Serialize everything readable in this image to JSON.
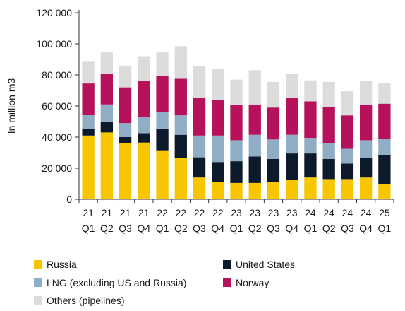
{
  "chart_data": {
    "type": "bar",
    "stacked": true,
    "ylabel": "In million m3",
    "ylim": [
      0,
      120000
    ],
    "yticks": [
      0,
      20000,
      40000,
      60000,
      80000,
      100000,
      120000
    ],
    "ytick_labels": [
      "0",
      "20 000",
      "40 000",
      "60 000",
      "80 000",
      "100 000",
      "120 000"
    ],
    "categories": [
      "21 Q1",
      "21 Q2",
      "21 Q3",
      "21 Q4",
      "22 Q1",
      "22 Q2",
      "22 Q3",
      "22 Q4",
      "23 Q1",
      "23 Q2",
      "23 Q3",
      "23 Q4",
      "24 Q1",
      "24 Q2",
      "24 Q3",
      "24 Q4",
      "25 Q1"
    ],
    "category_years": [
      "21",
      "21",
      "21",
      "21",
      "22",
      "22",
      "22",
      "22",
      "23",
      "23",
      "23",
      "23",
      "24",
      "24",
      "24",
      "24",
      "25"
    ],
    "category_quarters": [
      "Q1",
      "Q2",
      "Q3",
      "Q4",
      "Q1",
      "Q2",
      "Q3",
      "Q4",
      "Q1",
      "Q2",
      "Q3",
      "Q4",
      "Q1",
      "Q2",
      "Q3",
      "Q4",
      "Q1"
    ],
    "series": [
      {
        "name": "Russia",
        "color": "#f7c600",
        "values": [
          41000,
          43000,
          36000,
          36500,
          31500,
          26500,
          14000,
          11000,
          10500,
          10500,
          11000,
          12500,
          14000,
          13000,
          13000,
          14000,
          10000
        ]
      },
      {
        "name": "United States",
        "color": "#0c1a2b",
        "values": [
          4000,
          7000,
          4000,
          6000,
          14000,
          15000,
          13000,
          13000,
          14000,
          17000,
          15000,
          17000,
          15500,
          13000,
          10000,
          12500,
          18500
        ]
      },
      {
        "name": "LNG (excluding US and Russia)",
        "color": "#8faec6",
        "values": [
          9500,
          11000,
          9000,
          10500,
          10500,
          12500,
          14000,
          17000,
          13500,
          14000,
          12500,
          12000,
          10000,
          10000,
          9500,
          11500,
          10500
        ]
      },
      {
        "name": "Norway",
        "color": "#b5125b",
        "values": [
          20000,
          19500,
          23000,
          23000,
          23500,
          23500,
          24000,
          23000,
          22500,
          19500,
          20500,
          23500,
          23500,
          23500,
          21500,
          23000,
          22500
        ]
      },
      {
        "name": "Others (pipelines)",
        "color": "#dcdcdc",
        "values": [
          14000,
          14000,
          14000,
          16000,
          15000,
          21000,
          20500,
          20000,
          16500,
          22000,
          16500,
          15500,
          13500,
          16000,
          15500,
          15000,
          13500
        ]
      }
    ],
    "legend": [
      {
        "label": "Russia",
        "color": "#f7c600"
      },
      {
        "label": "United States",
        "color": "#0c1a2b"
      },
      {
        "label": "LNG (excluding US and Russia)",
        "color": "#8faec6"
      },
      {
        "label": "Norway",
        "color": "#b5125b"
      },
      {
        "label": "Others (pipelines)",
        "color": "#dcdcdc"
      }
    ],
    "legend_position": "bottom",
    "grid": false
  }
}
